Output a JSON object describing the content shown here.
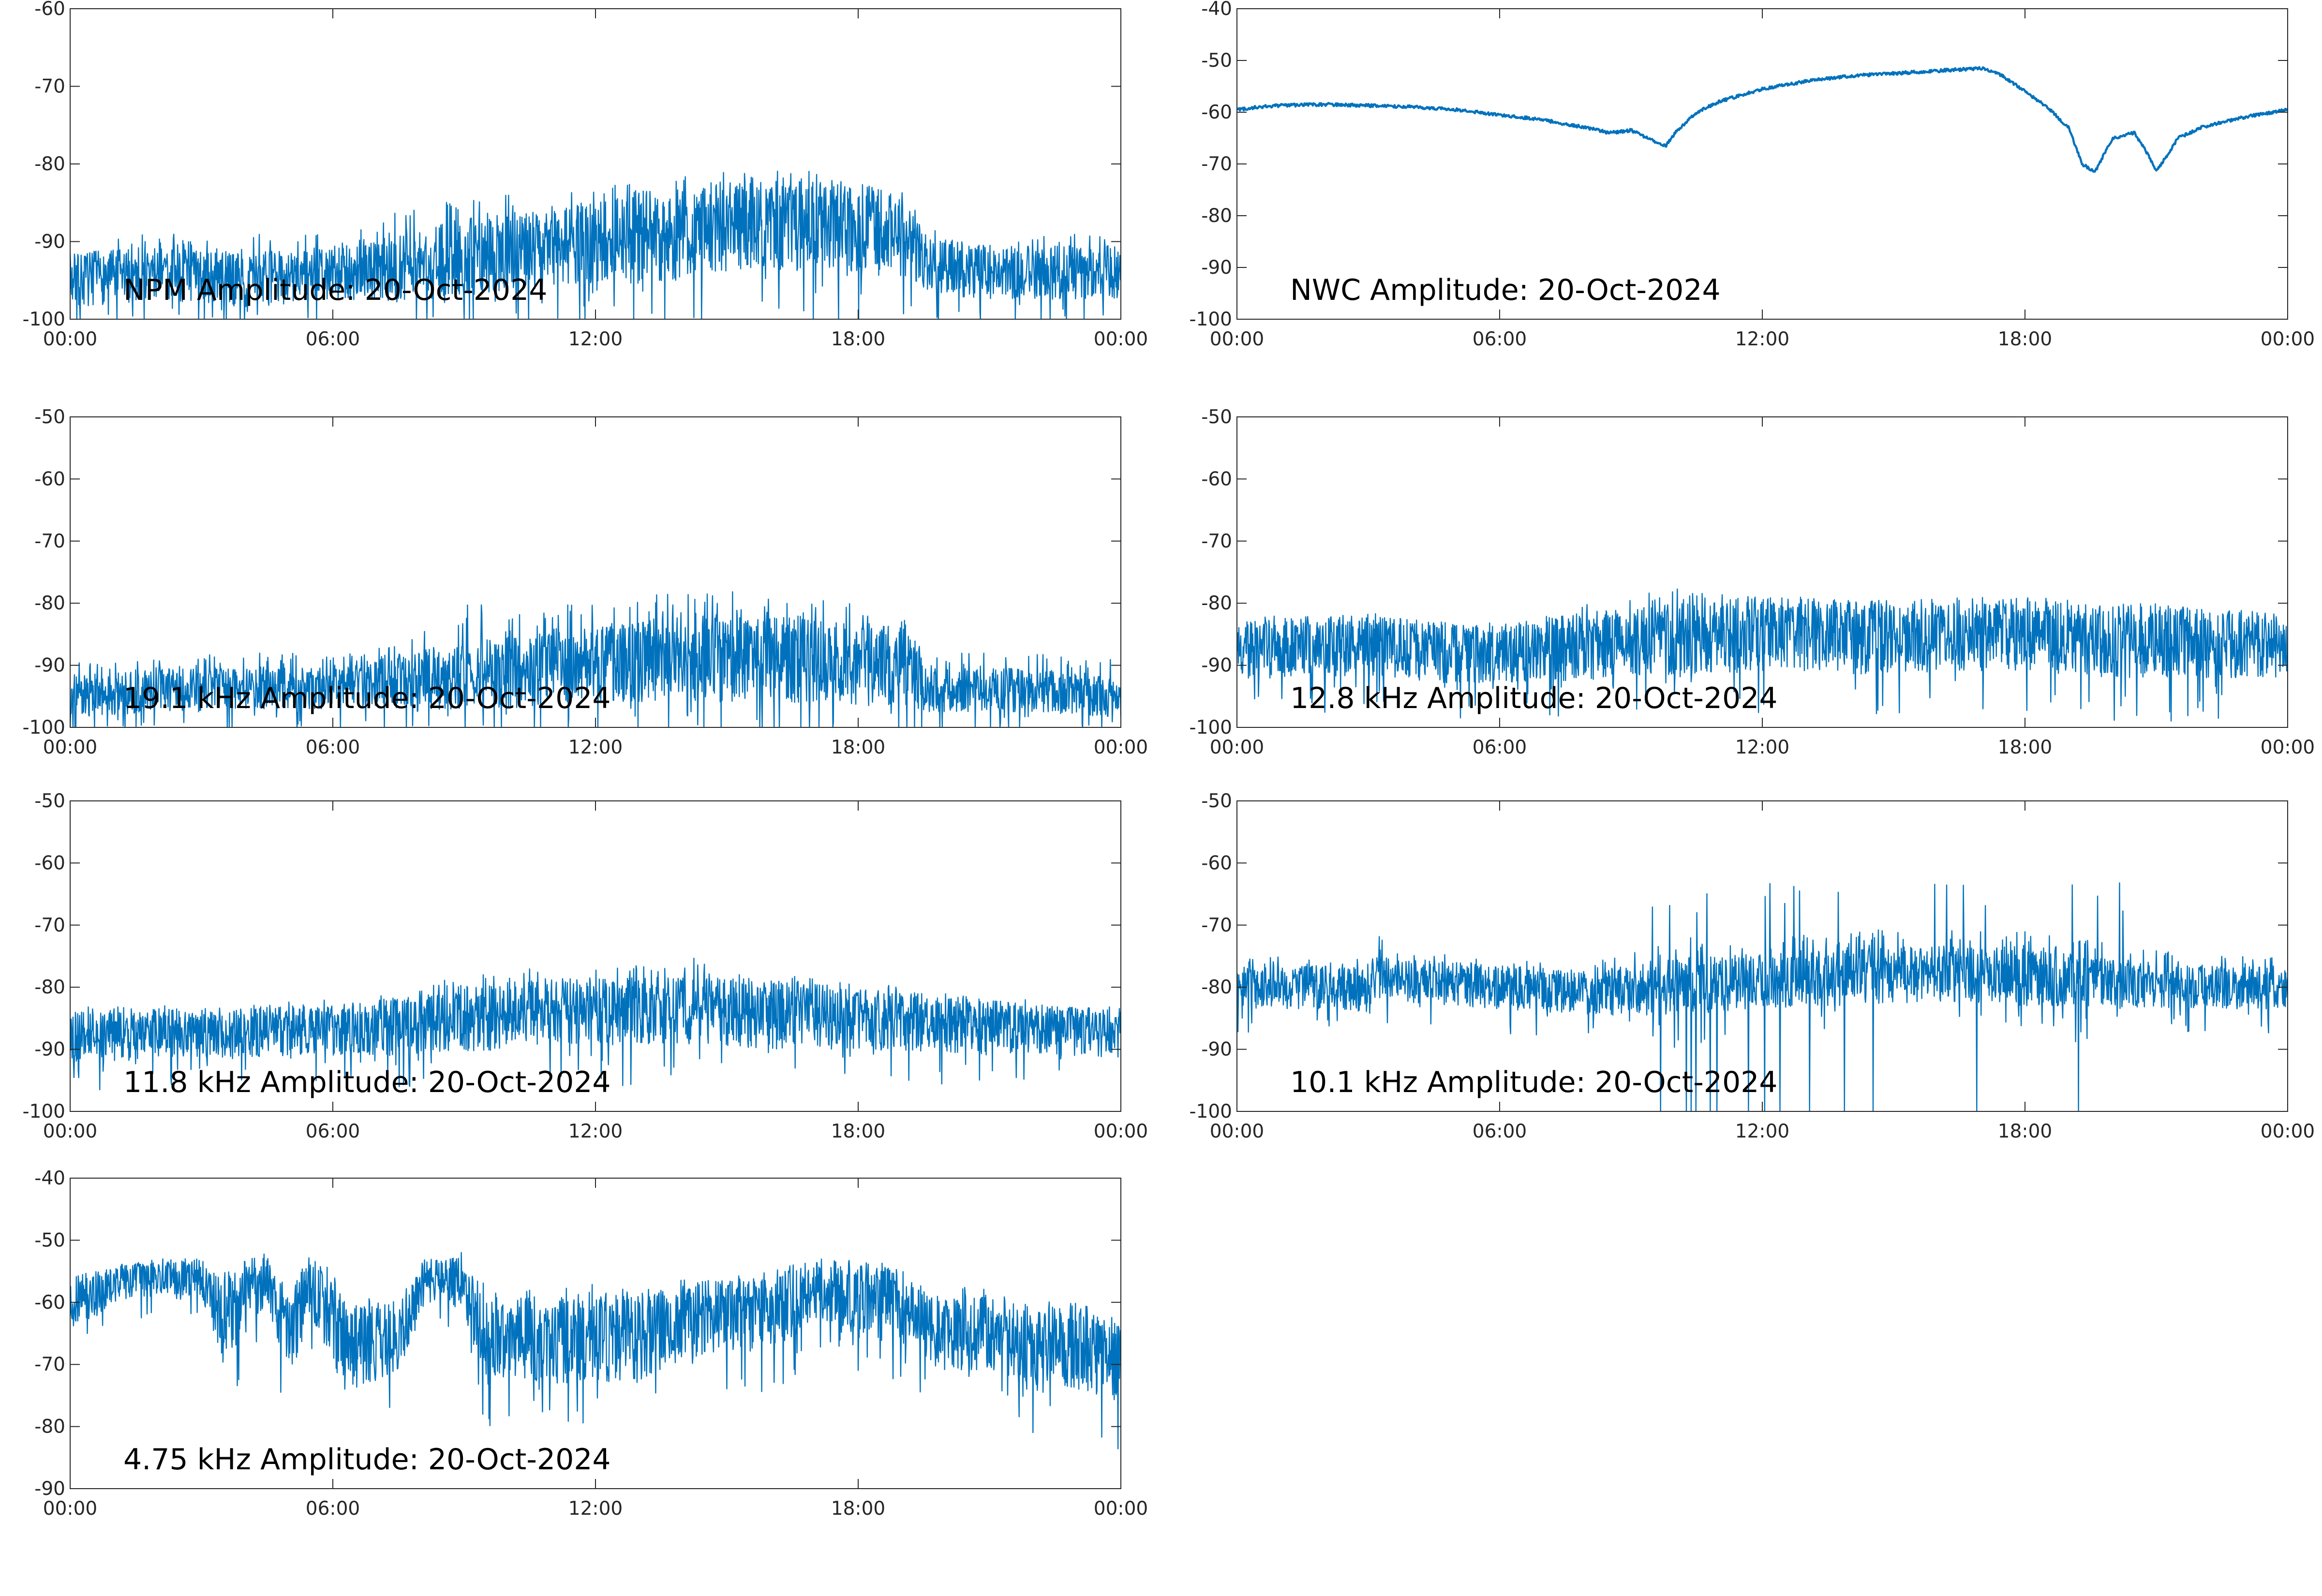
{
  "figure": {
    "background": "#ffffff",
    "line_color": "#0072bd",
    "x_tick_labels": [
      "00:00",
      "06:00",
      "12:00",
      "18:00",
      "00:00"
    ]
  },
  "chart_data": [
    {
      "type": "line",
      "title": "NPM Amplitude: 20-Oct-2024",
      "xlabel": "",
      "ylabel": "",
      "xlim": [
        0,
        24
      ],
      "ylim": [
        -100,
        -60
      ],
      "y_ticks": [
        -100,
        -90,
        -80,
        -70,
        -60
      ],
      "x_ticks": [
        0,
        6,
        12,
        18,
        24
      ],
      "grid": false,
      "style": "noisy",
      "series": [
        {
          "x": [
            0,
            1,
            2,
            3,
            4,
            5,
            6,
            7,
            8,
            9,
            10,
            11,
            12,
            13,
            14,
            15,
            16,
            17,
            18,
            19,
            19.5,
            20,
            21,
            22,
            23,
            24
          ],
          "center": [
            -95,
            -94.5,
            -94,
            -94.5,
            -95,
            -94.5,
            -94,
            -94,
            -93,
            -92,
            -91.5,
            -91,
            -90,
            -89.5,
            -89,
            -88,
            -87.5,
            -88,
            -88.5,
            -89,
            -92,
            -93.5,
            -94,
            -94,
            -94,
            -94
          ],
          "spread": [
            3.5,
            3.5,
            3.5,
            3.5,
            3.5,
            3.5,
            3.5,
            4,
            4.5,
            5,
            5,
            5,
            5.5,
            6,
            6,
            6,
            6,
            6,
            6,
            5.5,
            4,
            3.5,
            3.5,
            3.5,
            3.5,
            3.5
          ],
          "spike_max": [
            -89,
            -89,
            -89,
            -89,
            -89,
            -89,
            -89,
            -88,
            -84,
            -84,
            -84,
            -84,
            -83,
            -82,
            -81,
            -80,
            -80,
            -81,
            -82,
            -82,
            -88,
            -89,
            -89,
            -89,
            -89,
            -89
          ]
        }
      ]
    },
    {
      "type": "line",
      "title": "NWC Amplitude: 20-Oct-2024",
      "xlabel": "",
      "ylabel": "",
      "xlim": [
        0,
        24
      ],
      "ylim": [
        -100,
        -40
      ],
      "y_ticks": [
        -100,
        -90,
        -80,
        -70,
        -60,
        -50,
        -40
      ],
      "x_ticks": [
        0,
        6,
        12,
        18,
        24
      ],
      "grid": false,
      "style": "smooth",
      "series": [
        {
          "x": [
            0,
            0.5,
            1,
            2,
            3,
            4,
            5,
            6,
            7,
            8,
            8.5,
            9,
            9.5,
            9.8,
            10,
            10.5,
            11,
            12,
            13,
            14,
            15,
            16,
            17,
            17.5,
            18,
            18.5,
            19,
            19.3,
            19.6,
            20,
            20.5,
            20.8,
            21,
            21.5,
            22,
            23,
            24
          ],
          "values": [
            -59.5,
            -59,
            -58.7,
            -58.5,
            -58.7,
            -59,
            -59.5,
            -60.5,
            -61.5,
            -63,
            -64,
            -63.5,
            -65.5,
            -66.5,
            -64,
            -60,
            -58,
            -55.5,
            -54,
            -53,
            -52.5,
            -52,
            -51.5,
            -53,
            -56,
            -59,
            -63,
            -70,
            -71.5,
            -65,
            -64,
            -68,
            -71.5,
            -65,
            -63,
            -61,
            -59.5
          ]
        }
      ]
    },
    {
      "type": "line",
      "title": "19.1 kHz Amplitude: 20-Oct-2024",
      "xlabel": "",
      "ylabel": "",
      "xlim": [
        0,
        24
      ],
      "ylim": [
        -100,
        -50
      ],
      "y_ticks": [
        -100,
        -90,
        -80,
        -70,
        -60,
        -50
      ],
      "x_ticks": [
        0,
        6,
        12,
        18,
        24
      ],
      "grid": false,
      "style": "noisy",
      "series": [
        {
          "x": [
            0,
            1,
            2,
            3,
            4,
            5,
            6,
            7,
            8,
            9,
            10,
            11,
            12,
            13,
            14,
            15,
            16,
            17,
            18,
            19,
            19.5,
            20,
            21,
            22,
            23,
            24
          ],
          "center": [
            -95,
            -94.5,
            -94,
            -94,
            -94,
            -93.5,
            -93.5,
            -93,
            -92.5,
            -92,
            -91,
            -90.5,
            -90,
            -89.5,
            -89,
            -89,
            -89,
            -89,
            -89.5,
            -90,
            -93.5,
            -94,
            -94,
            -94,
            -94.5,
            -95
          ],
          "spread": [
            3.5,
            3.5,
            3.5,
            3.5,
            3.5,
            3.5,
            3.5,
            4,
            5,
            5.5,
            6,
            6,
            6,
            6.5,
            7,
            7,
            7,
            7,
            7,
            6.5,
            4,
            3.5,
            3.5,
            3.5,
            3.5,
            3.5
          ],
          "spike_max": [
            -89,
            -89,
            -89,
            -88,
            -88,
            -88,
            -88,
            -87,
            -85,
            -80,
            -80,
            -80,
            -80,
            -79,
            -78,
            -78,
            -79,
            -79,
            -80,
            -82,
            -88,
            -88,
            -88,
            -88,
            -89,
            -89
          ]
        }
      ]
    },
    {
      "type": "line",
      "title": "12.8 kHz Amplitude: 20-Oct-2024",
      "xlabel": "",
      "ylabel": "",
      "xlim": [
        0,
        24
      ],
      "ylim": [
        -100,
        -50
      ],
      "y_ticks": [
        -100,
        -90,
        -80,
        -70,
        -60,
        -50
      ],
      "x_ticks": [
        0,
        6,
        12,
        18,
        24
      ],
      "grid": false,
      "style": "noisy",
      "series": [
        {
          "x": [
            0,
            1,
            2,
            3,
            4,
            5,
            6,
            7,
            8,
            9,
            10,
            11,
            12,
            13,
            14,
            15,
            16,
            17,
            18,
            19,
            20,
            21,
            22,
            23,
            24
          ],
          "center": [
            -87.5,
            -87,
            -87,
            -86.5,
            -87.5,
            -88,
            -88,
            -87.5,
            -87,
            -86.5,
            -86,
            -85.5,
            -85,
            -85,
            -85.5,
            -85.5,
            -85,
            -85,
            -85,
            -85.5,
            -86,
            -86,
            -86.5,
            -86.5,
            -87
          ],
          "spread": [
            5,
            5,
            5,
            5,
            5,
            5,
            5,
            5,
            5.5,
            5.5,
            6,
            6,
            6,
            6,
            6,
            6,
            6,
            6,
            6,
            6,
            6,
            6,
            5.5,
            5.5,
            5
          ],
          "spike_max": [
            -82,
            -82,
            -82,
            -82,
            -83,
            -83,
            -83,
            -82,
            -80,
            -79,
            -77,
            -78,
            -79,
            -79,
            -79,
            -80,
            -80,
            -79,
            -79,
            -79,
            -80,
            -80,
            -81,
            -81,
            -82
          ]
        }
      ]
    },
    {
      "type": "line",
      "title": "11.8 kHz Amplitude: 20-Oct-2024",
      "xlabel": "",
      "ylabel": "",
      "xlim": [
        0,
        24
      ],
      "ylim": [
        -100,
        -50
      ],
      "y_ticks": [
        -100,
        -90,
        -80,
        -70,
        -60,
        -50
      ],
      "x_ticks": [
        0,
        6,
        12,
        18,
        24
      ],
      "grid": false,
      "style": "noisy",
      "series": [
        {
          "x": [
            0,
            1,
            2,
            3,
            4,
            5,
            6,
            7,
            8,
            9,
            10,
            11,
            12,
            13,
            14,
            15,
            16,
            17,
            18,
            19,
            20,
            21,
            22,
            23,
            24
          ],
          "center": [
            -88,
            -88,
            -87.5,
            -87.5,
            -87.5,
            -87,
            -87,
            -86.5,
            -86,
            -85,
            -84.5,
            -84,
            -84,
            -84,
            -84,
            -84,
            -84.5,
            -84.5,
            -85,
            -85.5,
            -86,
            -86.5,
            -87,
            -87,
            -87.5
          ],
          "spread": [
            4,
            4,
            4,
            4,
            4,
            4,
            4,
            4.5,
            5,
            5.5,
            5.5,
            5.5,
            5.5,
            5.5,
            5.5,
            5.5,
            5.5,
            5.5,
            5,
            5,
            4.5,
            4.5,
            4,
            4,
            4
          ],
          "spike_max": [
            -83,
            -83,
            -83,
            -83,
            -83,
            -82,
            -82,
            -81,
            -80,
            -77,
            -77,
            -77,
            -77,
            -76,
            -75,
            -76,
            -77,
            -78,
            -79,
            -80,
            -81,
            -82,
            -82,
            -83,
            -83
          ]
        }
      ]
    },
    {
      "type": "line",
      "title": "10.1 kHz Amplitude: 20-Oct-2024",
      "xlabel": "",
      "ylabel": "",
      "xlim": [
        0,
        24
      ],
      "ylim": [
        -100,
        -50
      ],
      "y_ticks": [
        -100,
        -90,
        -80,
        -70,
        -60,
        -50
      ],
      "x_ticks": [
        0,
        6,
        12,
        18,
        24
      ],
      "grid": false,
      "style": "noisy_pulses",
      "pulse_range": [
        9,
        20.5
      ],
      "pulse_max": -63,
      "series": [
        {
          "x": [
            0,
            1,
            2,
            3,
            3.1,
            3.3,
            3.5,
            4,
            5,
            6,
            7,
            8,
            9,
            10,
            11,
            12,
            13,
            14,
            15,
            16,
            17,
            18,
            19,
            20,
            21,
            22,
            23,
            24
          ],
          "center": [
            -80,
            -80,
            -80,
            -80.5,
            -78,
            -78,
            -79,
            -79,
            -79.5,
            -80,
            -80.5,
            -81,
            -80.5,
            -80,
            -79.5,
            -79,
            -78.5,
            -78.5,
            -78,
            -78,
            -78,
            -78.5,
            -79,
            -79.5,
            -80,
            -80,
            -80,
            -80
          ],
          "spread": [
            3.5,
            3.5,
            3.5,
            3.5,
            4,
            4,
            3.5,
            3.5,
            3.5,
            3.5,
            3.5,
            3.5,
            4,
            4.5,
            4.5,
            4.5,
            4.5,
            4.5,
            4.5,
            4.5,
            4.5,
            4.5,
            4.5,
            4,
            3.5,
            3.5,
            3.5,
            3.5
          ],
          "spike_max": [
            -75,
            -75,
            -75,
            -75,
            -70,
            -72,
            -74,
            -74,
            -75,
            -75,
            -76,
            -76,
            -74,
            -72,
            -72,
            -72,
            -71,
            -71,
            -70,
            -70,
            -70,
            -71,
            -72,
            -73,
            -74,
            -75,
            -75,
            -75
          ]
        }
      ]
    },
    {
      "type": "line",
      "title": "4.75 kHz Amplitude: 20-Oct-2024",
      "xlabel": "",
      "ylabel": "",
      "xlim": [
        0,
        24
      ],
      "ylim": [
        -90,
        -40
      ],
      "y_ticks": [
        -90,
        -80,
        -70,
        -60,
        -50,
        -40
      ],
      "x_ticks": [
        0,
        6,
        12,
        18,
        24
      ],
      "grid": false,
      "style": "noisy",
      "series": [
        {
          "x": [
            0,
            0.5,
            1,
            2,
            3,
            3.5,
            4,
            4.5,
            5,
            5.5,
            6,
            6.5,
            7,
            7.5,
            8,
            8.5,
            9,
            9.5,
            10,
            11,
            12,
            13,
            14,
            15,
            16,
            17,
            17.5,
            18,
            18.5,
            19,
            20,
            21,
            22,
            23,
            24
          ],
          "center": [
            -60,
            -59,
            -57,
            -56,
            -56,
            -63,
            -59,
            -56,
            -66,
            -57,
            -64,
            -67,
            -66,
            -66,
            -57,
            -56,
            -57,
            -67,
            -65,
            -66,
            -66,
            -66,
            -63,
            -62,
            -62,
            -58,
            -58,
            -60,
            -58,
            -62,
            -65,
            -65,
            -68,
            -67,
            -70
          ],
          "spread": [
            4,
            4,
            3,
            3,
            3,
            7,
            6,
            4,
            7,
            5,
            7,
            7,
            7,
            6,
            4,
            3,
            5,
            7,
            7,
            7,
            7,
            7,
            6,
            6,
            6,
            5,
            5,
            6,
            5,
            6,
            6,
            6,
            7,
            7,
            7
          ],
          "spike_max": [
            -55,
            -55,
            -54,
            -53,
            -53,
            -55,
            -53,
            -52,
            -58,
            -52,
            -55,
            -60,
            -60,
            -60,
            -53,
            -52,
            -51,
            -56,
            -57,
            -57,
            -57,
            -58,
            -56,
            -55,
            -55,
            -52,
            -52,
            -54,
            -53,
            -55,
            -57,
            -58,
            -59,
            -60,
            -62
          ]
        }
      ]
    }
  ]
}
